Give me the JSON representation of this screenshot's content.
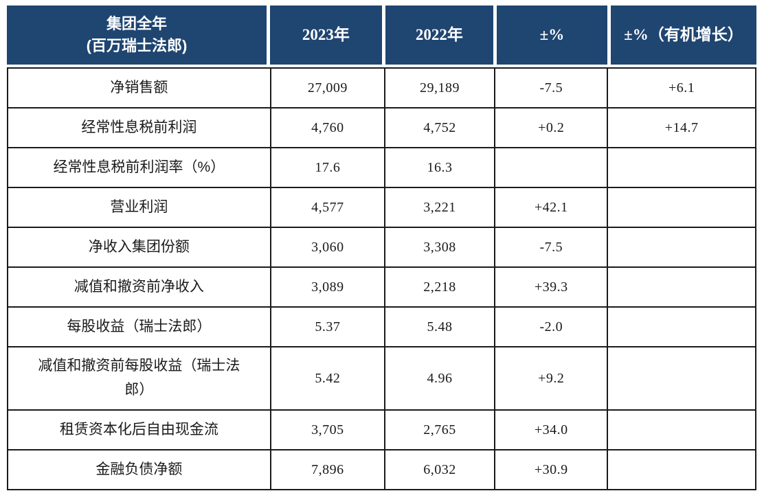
{
  "colors": {
    "header-bg": "#1F4571",
    "header-text": "#FFFFFF",
    "border": "#1A1A1A"
  },
  "table": {
    "header": {
      "group": "集团全年\n(百万瑞士法郎)",
      "y2023": "2023年",
      "y2022": "2022年",
      "change": "±%",
      "organic": "±%（有机增长）"
    },
    "rows": [
      {
        "label": "净销售额",
        "y2023": "27,009",
        "y2022": "29,189",
        "change": "-7.5",
        "organic": "+6.1"
      },
      {
        "label": "经常性息税前利润",
        "y2023": "4,760",
        "y2022": "4,752",
        "change": "+0.2",
        "organic": "+14.7"
      },
      {
        "label": "经常性息税前利润率（%）",
        "y2023": "17.6",
        "y2022": "16.3",
        "change": "",
        "organic": ""
      },
      {
        "label": "营业利润",
        "y2023": "4,577",
        "y2022": "3,221",
        "change": "+42.1",
        "organic": ""
      },
      {
        "label": "净收入集团份额",
        "y2023": "3,060",
        "y2022": "3,308",
        "change": "-7.5",
        "organic": ""
      },
      {
        "label": "减值和撤资前净收入",
        "y2023": "3,089",
        "y2022": "2,218",
        "change": "+39.3",
        "organic": ""
      },
      {
        "label": "每股收益（瑞士法郎）",
        "y2023": "5.37",
        "y2022": "5.48",
        "change": "-2.0",
        "organic": ""
      },
      {
        "label": "减值和撤资前每股收益（瑞士法郎）",
        "y2023": "5.42",
        "y2022": "4.96",
        "change": "+9.2",
        "organic": ""
      },
      {
        "label": "租赁资本化后自由现金流",
        "y2023": "3,705",
        "y2022": "2,765",
        "change": "+34.0",
        "organic": ""
      },
      {
        "label": "金融负债净额",
        "y2023": "7,896",
        "y2022": "6,032",
        "change": "+30.9",
        "organic": ""
      }
    ]
  }
}
